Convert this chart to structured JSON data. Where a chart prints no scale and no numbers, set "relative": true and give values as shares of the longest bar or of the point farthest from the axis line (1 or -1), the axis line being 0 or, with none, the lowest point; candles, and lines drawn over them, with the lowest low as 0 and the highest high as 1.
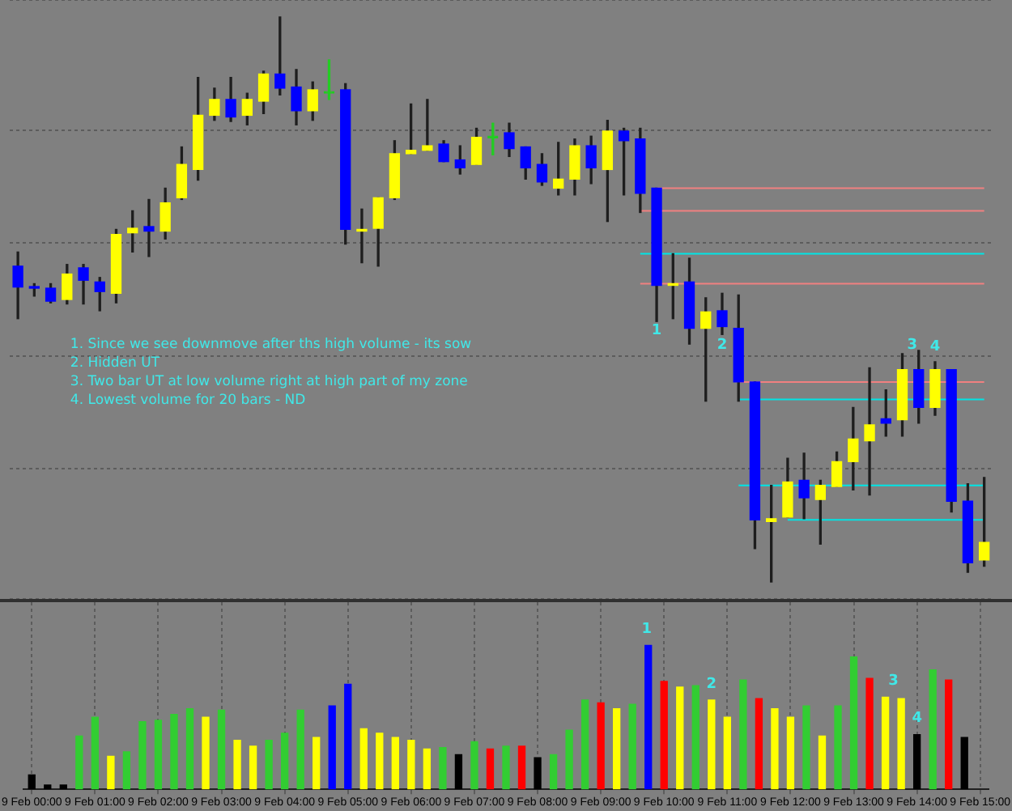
{
  "chart_data": [
    {
      "type": "candlestick",
      "relative": true,
      "tick_labels": false,
      "grid": "y",
      "categories": [
        null,
        null,
        null,
        null,
        null,
        null,
        null,
        null,
        null,
        null,
        null,
        null,
        null,
        null,
        null,
        null,
        null,
        null,
        null,
        null,
        null,
        null,
        null,
        null,
        null,
        null,
        null,
        null,
        null,
        null,
        null,
        null,
        null,
        null,
        null,
        null,
        null,
        null,
        null,
        null,
        null,
        null,
        null,
        null,
        null,
        null,
        null,
        null,
        null,
        null,
        null,
        null,
        null,
        null,
        null,
        null,
        null,
        null,
        null,
        null
      ],
      "ohlc": [
        [
          0.559,
          0.584,
          0.466,
          0.522
        ],
        [
          0.522,
          0.528,
          0.506,
          0.52
        ],
        [
          0.52,
          0.528,
          0.494,
          0.497
        ],
        [
          0.5,
          0.562,
          0.492,
          0.545
        ],
        [
          0.556,
          0.562,
          0.492,
          0.534
        ],
        [
          0.531,
          0.539,
          0.48,
          0.514
        ],
        [
          0.511,
          0.624,
          0.494,
          0.615
        ],
        [
          0.618,
          0.657,
          0.584,
          0.626
        ],
        [
          0.629,
          0.677,
          0.576,
          0.621
        ],
        [
          0.621,
          0.697,
          0.607,
          0.671
        ],
        [
          0.68,
          0.77,
          0.677,
          0.739
        ],
        [
          0.73,
          0.893,
          0.711,
          0.826
        ],
        [
          0.826,
          0.874,
          0.817,
          0.854
        ],
        [
          0.854,
          0.893,
          0.815,
          0.823
        ],
        [
          0.826,
          0.865,
          0.809,
          0.854
        ],
        [
          0.851,
          0.904,
          0.829,
          0.899
        ],
        [
          0.899,
          1,
          0.862,
          0.874
        ],
        [
          0.876,
          0.907,
          0.809,
          0.834
        ],
        [
          0.834,
          0.885,
          0.817,
          0.871
        ],
        [
          0.868,
          0.924,
          0.854,
          0.868
        ],
        [
          0.871,
          0.882,
          0.598,
          0.624
        ],
        [
          0.621,
          0.66,
          0.565,
          0.624
        ],
        [
          0.626,
          0.68,
          0.559,
          0.68
        ],
        [
          0.68,
          0.781,
          0.677,
          0.758
        ],
        [
          0.758,
          0.846,
          0.758,
          0.764
        ],
        [
          0.764,
          0.854,
          0.764,
          0.772
        ],
        [
          0.775,
          0.781,
          0.744,
          0.744
        ],
        [
          0.747,
          0.772,
          0.722,
          0.733
        ],
        [
          0.739,
          0.803,
          0.739,
          0.787
        ],
        [
          0.789,
          0.812,
          0.756,
          0.789
        ],
        [
          0.795,
          0.812,
          0.753,
          0.767
        ],
        [
          0.77,
          0.77,
          0.713,
          0.733
        ],
        [
          0.739,
          0.758,
          0.702,
          0.708
        ],
        [
          0.697,
          0.778,
          0.685,
          0.713
        ],
        [
          0.713,
          0.784,
          0.685,
          0.772
        ],
        [
          0.772,
          0.789,
          0.705,
          0.733
        ],
        [
          0.73,
          0.817,
          0.638,
          0.798
        ],
        [
          0.798,
          0.803,
          0.685,
          0.781
        ],
        [
          0.784,
          0.803,
          0.654,
          0.688
        ],
        [
          0.697,
          0.697,
          0.461,
          0.525
        ],
        [
          0.525,
          0.581,
          0.466,
          0.528
        ],
        [
          0.531,
          0.573,
          0.421,
          0.449
        ],
        [
          0.449,
          0.503,
          0.32,
          0.478
        ],
        [
          0.48,
          0.511,
          0.438,
          0.452
        ],
        [
          0.449,
          0.508,
          0.32,
          0.354
        ],
        [
          0.354,
          0.354,
          0.059,
          0.11
        ],
        [
          0.107,
          0.171,
          0,
          0.112
        ],
        [
          0.115,
          0.219,
          0.115,
          0.177
        ],
        [
          0.18,
          0.228,
          0.112,
          0.149
        ],
        [
          0.146,
          0.18,
          0.067,
          0.171
        ],
        [
          0.169,
          0.23,
          0.169,
          0.213
        ],
        [
          0.213,
          0.309,
          0.163,
          0.253
        ],
        [
          0.25,
          0.379,
          0.154,
          0.278
        ],
        [
          0.289,
          0.34,
          0.258,
          0.281
        ],
        [
          0.287,
          0.404,
          0.258,
          0.376
        ],
        [
          0.376,
          0.41,
          0.281,
          0.309
        ],
        [
          0.309,
          0.39,
          0.295,
          0.376
        ],
        [
          0.376,
          0.376,
          0.124,
          0.143
        ],
        [
          0.143,
          0.174,
          0.017,
          0.034
        ],
        [
          0.039,
          0.185,
          0.028,
          0.07
        ]
      ],
      "colors": [
        "#0000ff",
        "#0000ff",
        "#0000ff",
        "#ffff00",
        "#0000ff",
        "#0000ff",
        "#ffff00",
        "#ffff00",
        "#0000ff",
        "#ffff00",
        "#ffff00",
        "#ffff00",
        "#ffff00",
        "#0000ff",
        "#ffff00",
        "#ffff00",
        "#0000ff",
        "#0000ff",
        "#ffff00",
        "#22cc22",
        "#0000ff",
        "#ffff00",
        "#ffff00",
        "#ffff00",
        "#ffff00",
        "#ffff00",
        "#0000ff",
        "#0000ff",
        "#ffff00",
        "#22cc22",
        "#0000ff",
        "#0000ff",
        "#0000ff",
        "#ffff00",
        "#ffff00",
        "#0000ff",
        "#ffff00",
        "#0000ff",
        "#0000ff",
        "#0000ff",
        "#ffff00",
        "#0000ff",
        "#ffff00",
        "#0000ff",
        "#0000ff",
        "#0000ff",
        "#ffff00",
        "#ffff00",
        "#0000ff",
        "#ffff00",
        "#ffff00",
        "#ffff00",
        "#ffff00",
        "#0000ff",
        "#ffff00",
        "#0000ff",
        "#ffff00",
        "#0000ff",
        "#0000ff",
        "#ffff00"
      ],
      "series": [
        {
          "type": "line",
          "values": [
            null,
            null,
            null,
            null,
            null,
            null,
            null,
            null,
            null,
            null,
            null,
            null,
            null,
            null,
            null,
            null,
            null,
            null,
            null,
            null,
            null,
            null,
            null,
            null,
            null,
            null,
            null,
            null,
            null,
            null,
            null,
            null,
            null,
            null,
            null,
            null,
            null,
            null,
            null,
            0.697,
            0.697,
            0.697,
            0.697,
            0.697,
            0.697,
            0.697,
            0.697,
            0.697,
            0.697,
            0.697,
            0.697,
            0.697,
            0.697,
            0.697,
            0.697,
            0.697,
            0.697,
            0.697,
            0.697,
            0.697
          ],
          "color": "#f08080"
        },
        {
          "type": "line",
          "values": [
            null,
            null,
            null,
            null,
            null,
            null,
            null,
            null,
            null,
            null,
            null,
            null,
            null,
            null,
            null,
            null,
            null,
            null,
            null,
            null,
            null,
            null,
            null,
            null,
            null,
            null,
            null,
            null,
            null,
            null,
            null,
            null,
            null,
            null,
            null,
            null,
            null,
            null,
            0.657,
            0.657,
            0.657,
            0.657,
            0.657,
            0.657,
            0.657,
            0.657,
            0.657,
            0.657,
            0.657,
            0.657,
            0.657,
            0.657,
            0.657,
            0.657,
            0.657,
            0.657,
            0.657,
            0.657,
            0.657,
            0.657
          ],
          "color": "#f08080"
        },
        {
          "type": "line",
          "values": [
            null,
            null,
            null,
            null,
            null,
            null,
            null,
            null,
            null,
            null,
            null,
            null,
            null,
            null,
            null,
            null,
            null,
            null,
            null,
            null,
            null,
            null,
            null,
            null,
            null,
            null,
            null,
            null,
            null,
            null,
            null,
            null,
            null,
            null,
            null,
            null,
            null,
            null,
            0.581,
            0.581,
            0.581,
            0.581,
            0.581,
            0.581,
            0.581,
            0.581,
            0.581,
            0.581,
            0.581,
            0.581,
            0.581,
            0.581,
            0.581,
            0.581,
            0.581,
            0.581,
            0.581,
            0.581,
            0.581,
            0.581
          ],
          "color": "#00e5e5"
        },
        {
          "type": "line",
          "values": [
            null,
            null,
            null,
            null,
            null,
            null,
            null,
            null,
            null,
            null,
            null,
            null,
            null,
            null,
            null,
            null,
            null,
            null,
            null,
            null,
            null,
            null,
            null,
            null,
            null,
            null,
            null,
            null,
            null,
            null,
            null,
            null,
            null,
            null,
            null,
            null,
            null,
            null,
            0.528,
            0.528,
            0.528,
            0.528,
            0.528,
            0.528,
            0.528,
            0.528,
            0.528,
            0.528,
            0.528,
            0.528,
            0.528,
            0.528,
            0.528,
            0.528,
            0.528,
            0.528,
            0.528,
            0.528,
            0.528,
            0.528
          ],
          "color": "#f08080"
        },
        {
          "type": "line",
          "values": [
            null,
            null,
            null,
            null,
            null,
            null,
            null,
            null,
            null,
            null,
            null,
            null,
            null,
            null,
            null,
            null,
            null,
            null,
            null,
            null,
            null,
            null,
            null,
            null,
            null,
            null,
            null,
            null,
            null,
            null,
            null,
            null,
            null,
            null,
            null,
            null,
            null,
            null,
            null,
            null,
            null,
            null,
            null,
            null,
            0.354,
            0.354,
            0.354,
            0.354,
            0.354,
            0.354,
            0.354,
            0.354,
            0.354,
            0.354,
            0.354,
            0.354,
            0.354,
            0.354,
            0.354,
            0.354
          ],
          "color": "#f08080"
        },
        {
          "type": "line",
          "values": [
            null,
            null,
            null,
            null,
            null,
            null,
            null,
            null,
            null,
            null,
            null,
            null,
            null,
            null,
            null,
            null,
            null,
            null,
            null,
            null,
            null,
            null,
            null,
            null,
            null,
            null,
            null,
            null,
            null,
            null,
            null,
            null,
            null,
            null,
            null,
            null,
            null,
            null,
            null,
            null,
            null,
            null,
            null,
            null,
            0.323,
            0.323,
            0.323,
            0.323,
            0.323,
            0.323,
            0.323,
            0.323,
            0.323,
            0.323,
            0.323,
            0.323,
            0.323,
            0.323,
            0.323,
            0.323
          ],
          "color": "#00e5e5"
        },
        {
          "type": "line",
          "values": [
            null,
            null,
            null,
            null,
            null,
            null,
            null,
            null,
            null,
            null,
            null,
            null,
            null,
            null,
            null,
            null,
            null,
            null,
            null,
            null,
            null,
            null,
            null,
            null,
            null,
            null,
            null,
            null,
            null,
            null,
            null,
            null,
            null,
            null,
            null,
            null,
            null,
            null,
            null,
            null,
            null,
            null,
            null,
            null,
            0.171,
            0.171,
            0.171,
            0.171,
            0.171,
            0.171,
            0.171,
            0.171,
            0.171,
            0.171,
            0.171,
            0.171,
            0.171,
            0.171,
            0.171,
            0.171
          ],
          "color": "#00e5e5"
        },
        {
          "type": "line",
          "values": [
            null,
            null,
            null,
            null,
            null,
            null,
            null,
            null,
            null,
            null,
            null,
            null,
            null,
            null,
            null,
            null,
            null,
            null,
            null,
            null,
            null,
            null,
            null,
            null,
            null,
            null,
            null,
            null,
            null,
            null,
            null,
            null,
            null,
            null,
            null,
            null,
            null,
            null,
            null,
            null,
            null,
            null,
            null,
            null,
            null,
            null,
            null,
            0.11,
            0.11,
            0.11,
            0.11,
            0.11,
            0.11,
            0.11,
            0.11,
            0.11,
            0.11,
            0.11,
            0.11,
            0.11
          ],
          "color": "#00e5e5"
        }
      ],
      "annotations": [
        "1. Since we see downmove after ths high volume - its sow",
        "2. Hidden UT",
        "3. Two bar UT at low volume right at high part of my zone",
        "4. Lowest volume for 20 bars - ND",
        "1",
        "2",
        "3",
        "4"
      ]
    },
    {
      "type": "bar",
      "relative": true,
      "tick_labels": "x",
      "grid": "x",
      "categories": [
        "9 Feb 00:00",
        null,
        null,
        null,
        "9 Feb 01:00",
        null,
        null,
        null,
        "9 Feb 02:00",
        null,
        null,
        null,
        "9 Feb 03:00",
        null,
        null,
        null,
        "9 Feb 04:00",
        null,
        null,
        null,
        "9 Feb 05:00",
        null,
        null,
        null,
        "9 Feb 06:00",
        null,
        null,
        null,
        "9 Feb 07:00",
        null,
        null,
        null,
        "9 Feb 08:00",
        null,
        null,
        null,
        "9 Feb 09:00",
        null,
        null,
        null,
        "9 Feb 10:00",
        null,
        null,
        null,
        "9 Feb 11:00",
        null,
        null,
        null,
        "9 Feb 12:00",
        null,
        null,
        null,
        "9 Feb 13:00",
        null,
        null,
        null,
        "9 Feb 14:00",
        null,
        null,
        null,
        "9 Feb 15:00"
      ],
      "values": [
        0.1,
        0.03,
        0.03,
        0.37,
        0.5,
        0.23,
        0.26,
        0.47,
        0.48,
        0.52,
        0.56,
        0.5,
        0.55,
        0.34,
        0.3,
        0.34,
        0.39,
        0.55,
        0.36,
        0.58,
        0.73,
        0.42,
        0.39,
        0.36,
        0.34,
        0.28,
        0.29,
        0.24,
        0.33,
        0.28,
        0.3,
        0.3,
        0.22,
        0.24,
        0.41,
        0.62,
        0.6,
        0.56,
        0.59,
        1,
        0.75,
        0.71,
        0.72,
        0.62,
        0.5,
        0.76,
        0.63,
        0.56,
        0.5,
        0.58,
        0.37,
        0.58,
        0.92,
        0.77,
        0.64,
        0.63,
        0.38,
        0.83,
        0.76,
        0.36,
        null
      ],
      "colors": [
        "#000000",
        "#000000",
        "#000000",
        "#32cd32",
        "#32cd32",
        "#ffff00",
        "#32cd32",
        "#32cd32",
        "#32cd32",
        "#32cd32",
        "#32cd32",
        "#ffff00",
        "#32cd32",
        "#ffff00",
        "#ffff00",
        "#32cd32",
        "#32cd32",
        "#32cd32",
        "#ffff00",
        "#0000ff",
        "#0000ff",
        "#ffff00",
        "#ffff00",
        "#ffff00",
        "#ffff00",
        "#ffff00",
        "#32cd32",
        "#000000",
        "#32cd32",
        "#ff0000",
        "#32cd32",
        "#ff0000",
        "#000000",
        "#32cd32",
        "#32cd32",
        "#32cd32",
        "#ff0000",
        "#ffff00",
        "#32cd32",
        "#0000ff",
        "#ff0000",
        "#ffff00",
        "#32cd32",
        "#ffff00",
        "#ffff00",
        "#32cd32",
        "#ff0000",
        "#ffff00",
        "#ffff00",
        "#32cd32",
        "#ffff00",
        "#32cd32",
        "#32cd32",
        "#ff0000",
        "#ffff00",
        "#ffff00",
        "#000000",
        "#32cd32",
        "#ff0000",
        "#000000",
        null
      ],
      "annotations": [
        "1",
        "2",
        "3",
        "4"
      ]
    }
  ]
}
